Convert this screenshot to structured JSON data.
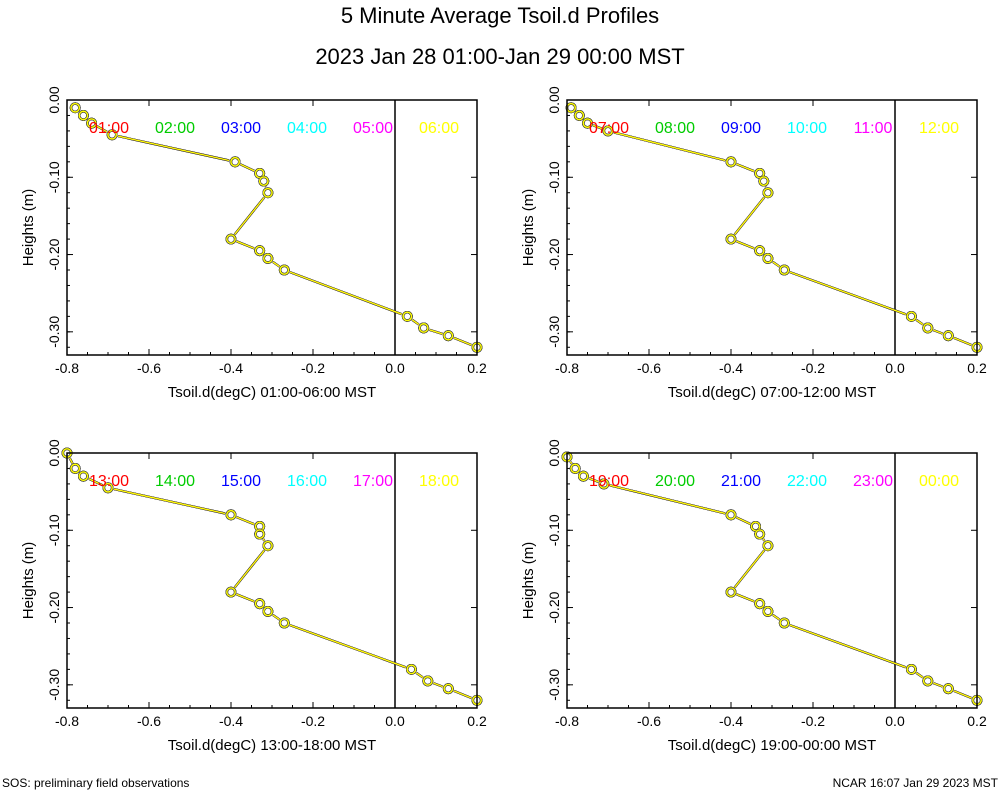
{
  "title": "5 Minute Average Tsoil.d Profiles",
  "subtitle": "2023 Jan 28 01:00-Jan 29 00:00 MST",
  "footer_left": "SOS: preliminary field observations",
  "footer_right": "NCAR 16:07 Jan 29 2023 MST",
  "colors": {
    "01": "#ff0000",
    "02": "#00cc00",
    "03": "#0000ff",
    "04": "#00ffff",
    "05": "#ff00ff",
    "06": "#ffff00"
  },
  "chart_data": [
    {
      "type": "line",
      "xlabel": "Tsoil.d(degC) 01:00-06:00 MST",
      "ylabel": "Heights (m)",
      "xlim": [
        -0.8,
        0.2
      ],
      "ylim": [
        -0.33,
        0.0
      ],
      "xticks": [
        "-0.8",
        "-0.6",
        "-0.4",
        "-0.2",
        "0.0",
        "0.2"
      ],
      "yticks": [
        "0.00",
        "-0.10",
        "-0.20",
        "-0.30"
      ],
      "legend": [
        "01:00",
        "02:00",
        "03:00",
        "04:00",
        "05:00",
        "06:00"
      ],
      "series": [
        {
          "name": "01:00",
          "x": [
            -0.78,
            -0.76,
            -0.74,
            -0.69,
            -0.39,
            -0.33,
            -0.32,
            -0.31,
            -0.4,
            -0.33,
            -0.31,
            -0.27,
            0.03,
            0.07,
            0.13,
            0.2
          ],
          "y": [
            -0.01,
            -0.02,
            -0.03,
            -0.045,
            -0.08,
            -0.095,
            -0.105,
            -0.12,
            -0.18,
            -0.195,
            -0.205,
            -0.22,
            -0.28,
            -0.295,
            -0.305,
            -0.32
          ]
        },
        {
          "name": "02:00",
          "x": [
            -0.78,
            -0.76,
            -0.74,
            -0.69,
            -0.39,
            -0.33,
            -0.32,
            -0.31,
            -0.4,
            -0.33,
            -0.31,
            -0.27,
            0.03,
            0.07,
            0.13,
            0.2
          ],
          "y": [
            -0.01,
            -0.02,
            -0.03,
            -0.045,
            -0.08,
            -0.095,
            -0.105,
            -0.12,
            -0.18,
            -0.195,
            -0.205,
            -0.22,
            -0.28,
            -0.295,
            -0.305,
            -0.32
          ]
        },
        {
          "name": "03:00",
          "x": [
            -0.78,
            -0.76,
            -0.74,
            -0.69,
            -0.39,
            -0.33,
            -0.32,
            -0.31,
            -0.4,
            -0.33,
            -0.31,
            -0.27,
            0.03,
            0.07,
            0.13,
            0.2
          ],
          "y": [
            -0.01,
            -0.02,
            -0.03,
            -0.045,
            -0.08,
            -0.095,
            -0.105,
            -0.12,
            -0.18,
            -0.195,
            -0.205,
            -0.22,
            -0.28,
            -0.295,
            -0.305,
            -0.32
          ]
        },
        {
          "name": "04:00",
          "x": [
            -0.78,
            -0.76,
            -0.74,
            -0.69,
            -0.39,
            -0.33,
            -0.32,
            -0.31,
            -0.4,
            -0.33,
            -0.31,
            -0.27,
            0.03,
            0.07,
            0.13,
            0.2
          ],
          "y": [
            -0.01,
            -0.02,
            -0.03,
            -0.045,
            -0.08,
            -0.095,
            -0.105,
            -0.12,
            -0.18,
            -0.195,
            -0.205,
            -0.22,
            -0.28,
            -0.295,
            -0.305,
            -0.32
          ]
        },
        {
          "name": "05:00",
          "x": [
            -0.78,
            -0.76,
            -0.74,
            -0.69,
            -0.39,
            -0.33,
            -0.32,
            -0.31,
            -0.4,
            -0.33,
            -0.31,
            -0.27,
            0.03,
            0.07,
            0.13,
            0.2
          ],
          "y": [
            -0.01,
            -0.02,
            -0.03,
            -0.045,
            -0.08,
            -0.095,
            -0.105,
            -0.12,
            -0.18,
            -0.195,
            -0.205,
            -0.22,
            -0.28,
            -0.295,
            -0.305,
            -0.32
          ]
        },
        {
          "name": "06:00",
          "x": [
            -0.78,
            -0.76,
            -0.74,
            -0.69,
            -0.39,
            -0.33,
            -0.32,
            -0.31,
            -0.4,
            -0.33,
            -0.31,
            -0.27,
            0.03,
            0.07,
            0.13,
            0.2
          ],
          "y": [
            -0.01,
            -0.02,
            -0.03,
            -0.045,
            -0.08,
            -0.095,
            -0.105,
            -0.12,
            -0.18,
            -0.195,
            -0.205,
            -0.22,
            -0.28,
            -0.295,
            -0.305,
            -0.32
          ]
        }
      ]
    },
    {
      "type": "line",
      "xlabel": "Tsoil.d(degC) 07:00-12:00 MST",
      "ylabel": "Heights (m)",
      "xlim": [
        -0.8,
        0.2
      ],
      "ylim": [
        -0.33,
        0.0
      ],
      "xticks": [
        "-0.8",
        "-0.6",
        "-0.4",
        "-0.2",
        "0.0",
        "0.2"
      ],
      "yticks": [
        "0.00",
        "-0.10",
        "-0.20",
        "-0.30"
      ],
      "legend": [
        "07:00",
        "08:00",
        "09:00",
        "10:00",
        "11:00",
        "12:00"
      ],
      "series": [
        {
          "name": "07:00",
          "x": [
            -0.79,
            -0.77,
            -0.75,
            -0.7,
            -0.4,
            -0.33,
            -0.32,
            -0.31,
            -0.4,
            -0.33,
            -0.31,
            -0.27,
            0.04,
            0.08,
            0.13,
            0.2
          ],
          "y": [
            -0.01,
            -0.02,
            -0.03,
            -0.04,
            -0.08,
            -0.095,
            -0.105,
            -0.12,
            -0.18,
            -0.195,
            -0.205,
            -0.22,
            -0.28,
            -0.295,
            -0.305,
            -0.32
          ]
        },
        {
          "name": "08:00",
          "x": [
            -0.79,
            -0.77,
            -0.75,
            -0.7,
            -0.4,
            -0.33,
            -0.32,
            -0.31,
            -0.4,
            -0.33,
            -0.31,
            -0.27,
            0.04,
            0.08,
            0.13,
            0.2
          ],
          "y": [
            -0.01,
            -0.02,
            -0.03,
            -0.04,
            -0.08,
            -0.095,
            -0.105,
            -0.12,
            -0.18,
            -0.195,
            -0.205,
            -0.22,
            -0.28,
            -0.295,
            -0.305,
            -0.32
          ]
        },
        {
          "name": "09:00",
          "x": [
            -0.79,
            -0.77,
            -0.75,
            -0.7,
            -0.4,
            -0.33,
            -0.32,
            -0.31,
            -0.4,
            -0.33,
            -0.31,
            -0.27,
            0.04,
            0.08,
            0.13,
            0.2
          ],
          "y": [
            -0.01,
            -0.02,
            -0.03,
            -0.04,
            -0.08,
            -0.095,
            -0.105,
            -0.12,
            -0.18,
            -0.195,
            -0.205,
            -0.22,
            -0.28,
            -0.295,
            -0.305,
            -0.32
          ]
        },
        {
          "name": "10:00",
          "x": [
            -0.79,
            -0.77,
            -0.75,
            -0.7,
            -0.4,
            -0.33,
            -0.32,
            -0.31,
            -0.4,
            -0.33,
            -0.31,
            -0.27,
            0.04,
            0.08,
            0.13,
            0.2
          ],
          "y": [
            -0.01,
            -0.02,
            -0.03,
            -0.04,
            -0.08,
            -0.095,
            -0.105,
            -0.12,
            -0.18,
            -0.195,
            -0.205,
            -0.22,
            -0.28,
            -0.295,
            -0.305,
            -0.32
          ]
        },
        {
          "name": "11:00",
          "x": [
            -0.79,
            -0.77,
            -0.75,
            -0.7,
            -0.4,
            -0.33,
            -0.32,
            -0.31,
            -0.4,
            -0.33,
            -0.31,
            -0.27,
            0.04,
            0.08,
            0.13,
            0.2
          ],
          "y": [
            -0.01,
            -0.02,
            -0.03,
            -0.04,
            -0.08,
            -0.095,
            -0.105,
            -0.12,
            -0.18,
            -0.195,
            -0.205,
            -0.22,
            -0.28,
            -0.295,
            -0.305,
            -0.32
          ]
        },
        {
          "name": "12:00",
          "x": [
            -0.79,
            -0.77,
            -0.75,
            -0.7,
            -0.4,
            -0.33,
            -0.32,
            -0.31,
            -0.4,
            -0.33,
            -0.31,
            -0.27,
            0.04,
            0.08,
            0.13,
            0.2
          ],
          "y": [
            -0.01,
            -0.02,
            -0.03,
            -0.04,
            -0.08,
            -0.095,
            -0.105,
            -0.12,
            -0.18,
            -0.195,
            -0.205,
            -0.22,
            -0.28,
            -0.295,
            -0.305,
            -0.32
          ]
        }
      ]
    },
    {
      "type": "line",
      "xlabel": "Tsoil.d(degC) 13:00-18:00 MST",
      "ylabel": "Heights (m)",
      "xlim": [
        -0.8,
        0.2
      ],
      "ylim": [
        -0.33,
        0.0
      ],
      "xticks": [
        "-0.8",
        "-0.6",
        "-0.4",
        "-0.2",
        "0.0",
        "0.2"
      ],
      "yticks": [
        "0.00",
        "-0.10",
        "-0.20",
        "-0.30"
      ],
      "legend": [
        "13:00",
        "14:00",
        "15:00",
        "16:00",
        "17:00",
        "18:00"
      ],
      "series": [
        {
          "name": "13:00",
          "x": [
            -0.8,
            -0.78,
            -0.76,
            -0.7,
            -0.4,
            -0.33,
            -0.33,
            -0.31,
            -0.4,
            -0.33,
            -0.31,
            -0.27,
            0.04,
            0.08,
            0.13,
            0.2
          ],
          "y": [
            0.0,
            -0.02,
            -0.03,
            -0.045,
            -0.08,
            -0.095,
            -0.105,
            -0.12,
            -0.18,
            -0.195,
            -0.205,
            -0.22,
            -0.28,
            -0.295,
            -0.305,
            -0.32
          ]
        },
        {
          "name": "14:00",
          "x": [
            -0.8,
            -0.78,
            -0.76,
            -0.7,
            -0.4,
            -0.33,
            -0.33,
            -0.31,
            -0.4,
            -0.33,
            -0.31,
            -0.27,
            0.04,
            0.08,
            0.13,
            0.2
          ],
          "y": [
            0.0,
            -0.02,
            -0.03,
            -0.045,
            -0.08,
            -0.095,
            -0.105,
            -0.12,
            -0.18,
            -0.195,
            -0.205,
            -0.22,
            -0.28,
            -0.295,
            -0.305,
            -0.32
          ]
        },
        {
          "name": "15:00",
          "x": [
            -0.8,
            -0.78,
            -0.76,
            -0.7,
            -0.4,
            -0.33,
            -0.33,
            -0.31,
            -0.4,
            -0.33,
            -0.31,
            -0.27,
            0.04,
            0.08,
            0.13,
            0.2
          ],
          "y": [
            0.0,
            -0.02,
            -0.03,
            -0.045,
            -0.08,
            -0.095,
            -0.105,
            -0.12,
            -0.18,
            -0.195,
            -0.205,
            -0.22,
            -0.28,
            -0.295,
            -0.305,
            -0.32
          ]
        },
        {
          "name": "16:00",
          "x": [
            -0.8,
            -0.78,
            -0.76,
            -0.7,
            -0.4,
            -0.33,
            -0.33,
            -0.31,
            -0.4,
            -0.33,
            -0.31,
            -0.27,
            0.04,
            0.08,
            0.13,
            0.2
          ],
          "y": [
            0.0,
            -0.02,
            -0.03,
            -0.045,
            -0.08,
            -0.095,
            -0.105,
            -0.12,
            -0.18,
            -0.195,
            -0.205,
            -0.22,
            -0.28,
            -0.295,
            -0.305,
            -0.32
          ]
        },
        {
          "name": "17:00",
          "x": [
            -0.8,
            -0.78,
            -0.76,
            -0.7,
            -0.4,
            -0.33,
            -0.33,
            -0.31,
            -0.4,
            -0.33,
            -0.31,
            -0.27,
            0.04,
            0.08,
            0.13,
            0.2
          ],
          "y": [
            0.0,
            -0.02,
            -0.03,
            -0.045,
            -0.08,
            -0.095,
            -0.105,
            -0.12,
            -0.18,
            -0.195,
            -0.205,
            -0.22,
            -0.28,
            -0.295,
            -0.305,
            -0.32
          ]
        },
        {
          "name": "18:00",
          "x": [
            -0.8,
            -0.78,
            -0.76,
            -0.7,
            -0.4,
            -0.33,
            -0.33,
            -0.31,
            -0.4,
            -0.33,
            -0.31,
            -0.27,
            0.04,
            0.08,
            0.13,
            0.2
          ],
          "y": [
            0.0,
            -0.02,
            -0.03,
            -0.045,
            -0.08,
            -0.095,
            -0.105,
            -0.12,
            -0.18,
            -0.195,
            -0.205,
            -0.22,
            -0.28,
            -0.295,
            -0.305,
            -0.32
          ]
        }
      ]
    },
    {
      "type": "line",
      "xlabel": "Tsoil.d(degC) 19:00-00:00 MST",
      "ylabel": "Heights (m)",
      "xlim": [
        -0.8,
        0.2
      ],
      "ylim": [
        -0.33,
        0.0
      ],
      "xticks": [
        "-0.8",
        "-0.6",
        "-0.4",
        "-0.2",
        "0.0",
        "0.2"
      ],
      "yticks": [
        "0.00",
        "-0.10",
        "-0.20",
        "-0.30"
      ],
      "legend": [
        "19:00",
        "20:00",
        "21:00",
        "22:00",
        "23:00",
        "00:00"
      ],
      "series": [
        {
          "name": "19:00",
          "x": [
            -0.8,
            -0.78,
            -0.76,
            -0.71,
            -0.4,
            -0.34,
            -0.33,
            -0.31,
            -0.4,
            -0.33,
            -0.31,
            -0.27,
            0.04,
            0.08,
            0.13,
            0.2
          ],
          "y": [
            -0.005,
            -0.02,
            -0.03,
            -0.04,
            -0.08,
            -0.095,
            -0.105,
            -0.12,
            -0.18,
            -0.195,
            -0.205,
            -0.22,
            -0.28,
            -0.295,
            -0.305,
            -0.32
          ]
        },
        {
          "name": "20:00",
          "x": [
            -0.8,
            -0.78,
            -0.76,
            -0.71,
            -0.4,
            -0.34,
            -0.33,
            -0.31,
            -0.4,
            -0.33,
            -0.31,
            -0.27,
            0.04,
            0.08,
            0.13,
            0.2
          ],
          "y": [
            -0.005,
            -0.02,
            -0.03,
            -0.04,
            -0.08,
            -0.095,
            -0.105,
            -0.12,
            -0.18,
            -0.195,
            -0.205,
            -0.22,
            -0.28,
            -0.295,
            -0.305,
            -0.32
          ]
        },
        {
          "name": "21:00",
          "x": [
            -0.8,
            -0.78,
            -0.76,
            -0.71,
            -0.4,
            -0.34,
            -0.33,
            -0.31,
            -0.4,
            -0.33,
            -0.31,
            -0.27,
            0.04,
            0.08,
            0.13,
            0.2
          ],
          "y": [
            -0.005,
            -0.02,
            -0.03,
            -0.04,
            -0.08,
            -0.095,
            -0.105,
            -0.12,
            -0.18,
            -0.195,
            -0.205,
            -0.22,
            -0.28,
            -0.295,
            -0.305,
            -0.32
          ]
        },
        {
          "name": "22:00",
          "x": [
            -0.8,
            -0.78,
            -0.76,
            -0.71,
            -0.4,
            -0.34,
            -0.33,
            -0.31,
            -0.4,
            -0.33,
            -0.31,
            -0.27,
            0.04,
            0.08,
            0.13,
            0.2
          ],
          "y": [
            -0.005,
            -0.02,
            -0.03,
            -0.04,
            -0.08,
            -0.095,
            -0.105,
            -0.12,
            -0.18,
            -0.195,
            -0.205,
            -0.22,
            -0.28,
            -0.295,
            -0.305,
            -0.32
          ]
        },
        {
          "name": "23:00",
          "x": [
            -0.8,
            -0.78,
            -0.76,
            -0.71,
            -0.4,
            -0.34,
            -0.33,
            -0.31,
            -0.4,
            -0.33,
            -0.31,
            -0.27,
            0.04,
            0.08,
            0.13,
            0.2
          ],
          "y": [
            -0.005,
            -0.02,
            -0.03,
            -0.04,
            -0.08,
            -0.095,
            -0.105,
            -0.12,
            -0.18,
            -0.195,
            -0.205,
            -0.22,
            -0.28,
            -0.295,
            -0.305,
            -0.32
          ]
        },
        {
          "name": "00:00",
          "x": [
            -0.8,
            -0.78,
            -0.76,
            -0.71,
            -0.4,
            -0.34,
            -0.33,
            -0.31,
            -0.4,
            -0.33,
            -0.31,
            -0.27,
            0.04,
            0.08,
            0.13,
            0.2
          ],
          "y": [
            -0.005,
            -0.02,
            -0.03,
            -0.04,
            -0.08,
            -0.095,
            -0.105,
            -0.12,
            -0.18,
            -0.195,
            -0.205,
            -0.22,
            -0.28,
            -0.295,
            -0.305,
            -0.32
          ]
        }
      ]
    }
  ]
}
